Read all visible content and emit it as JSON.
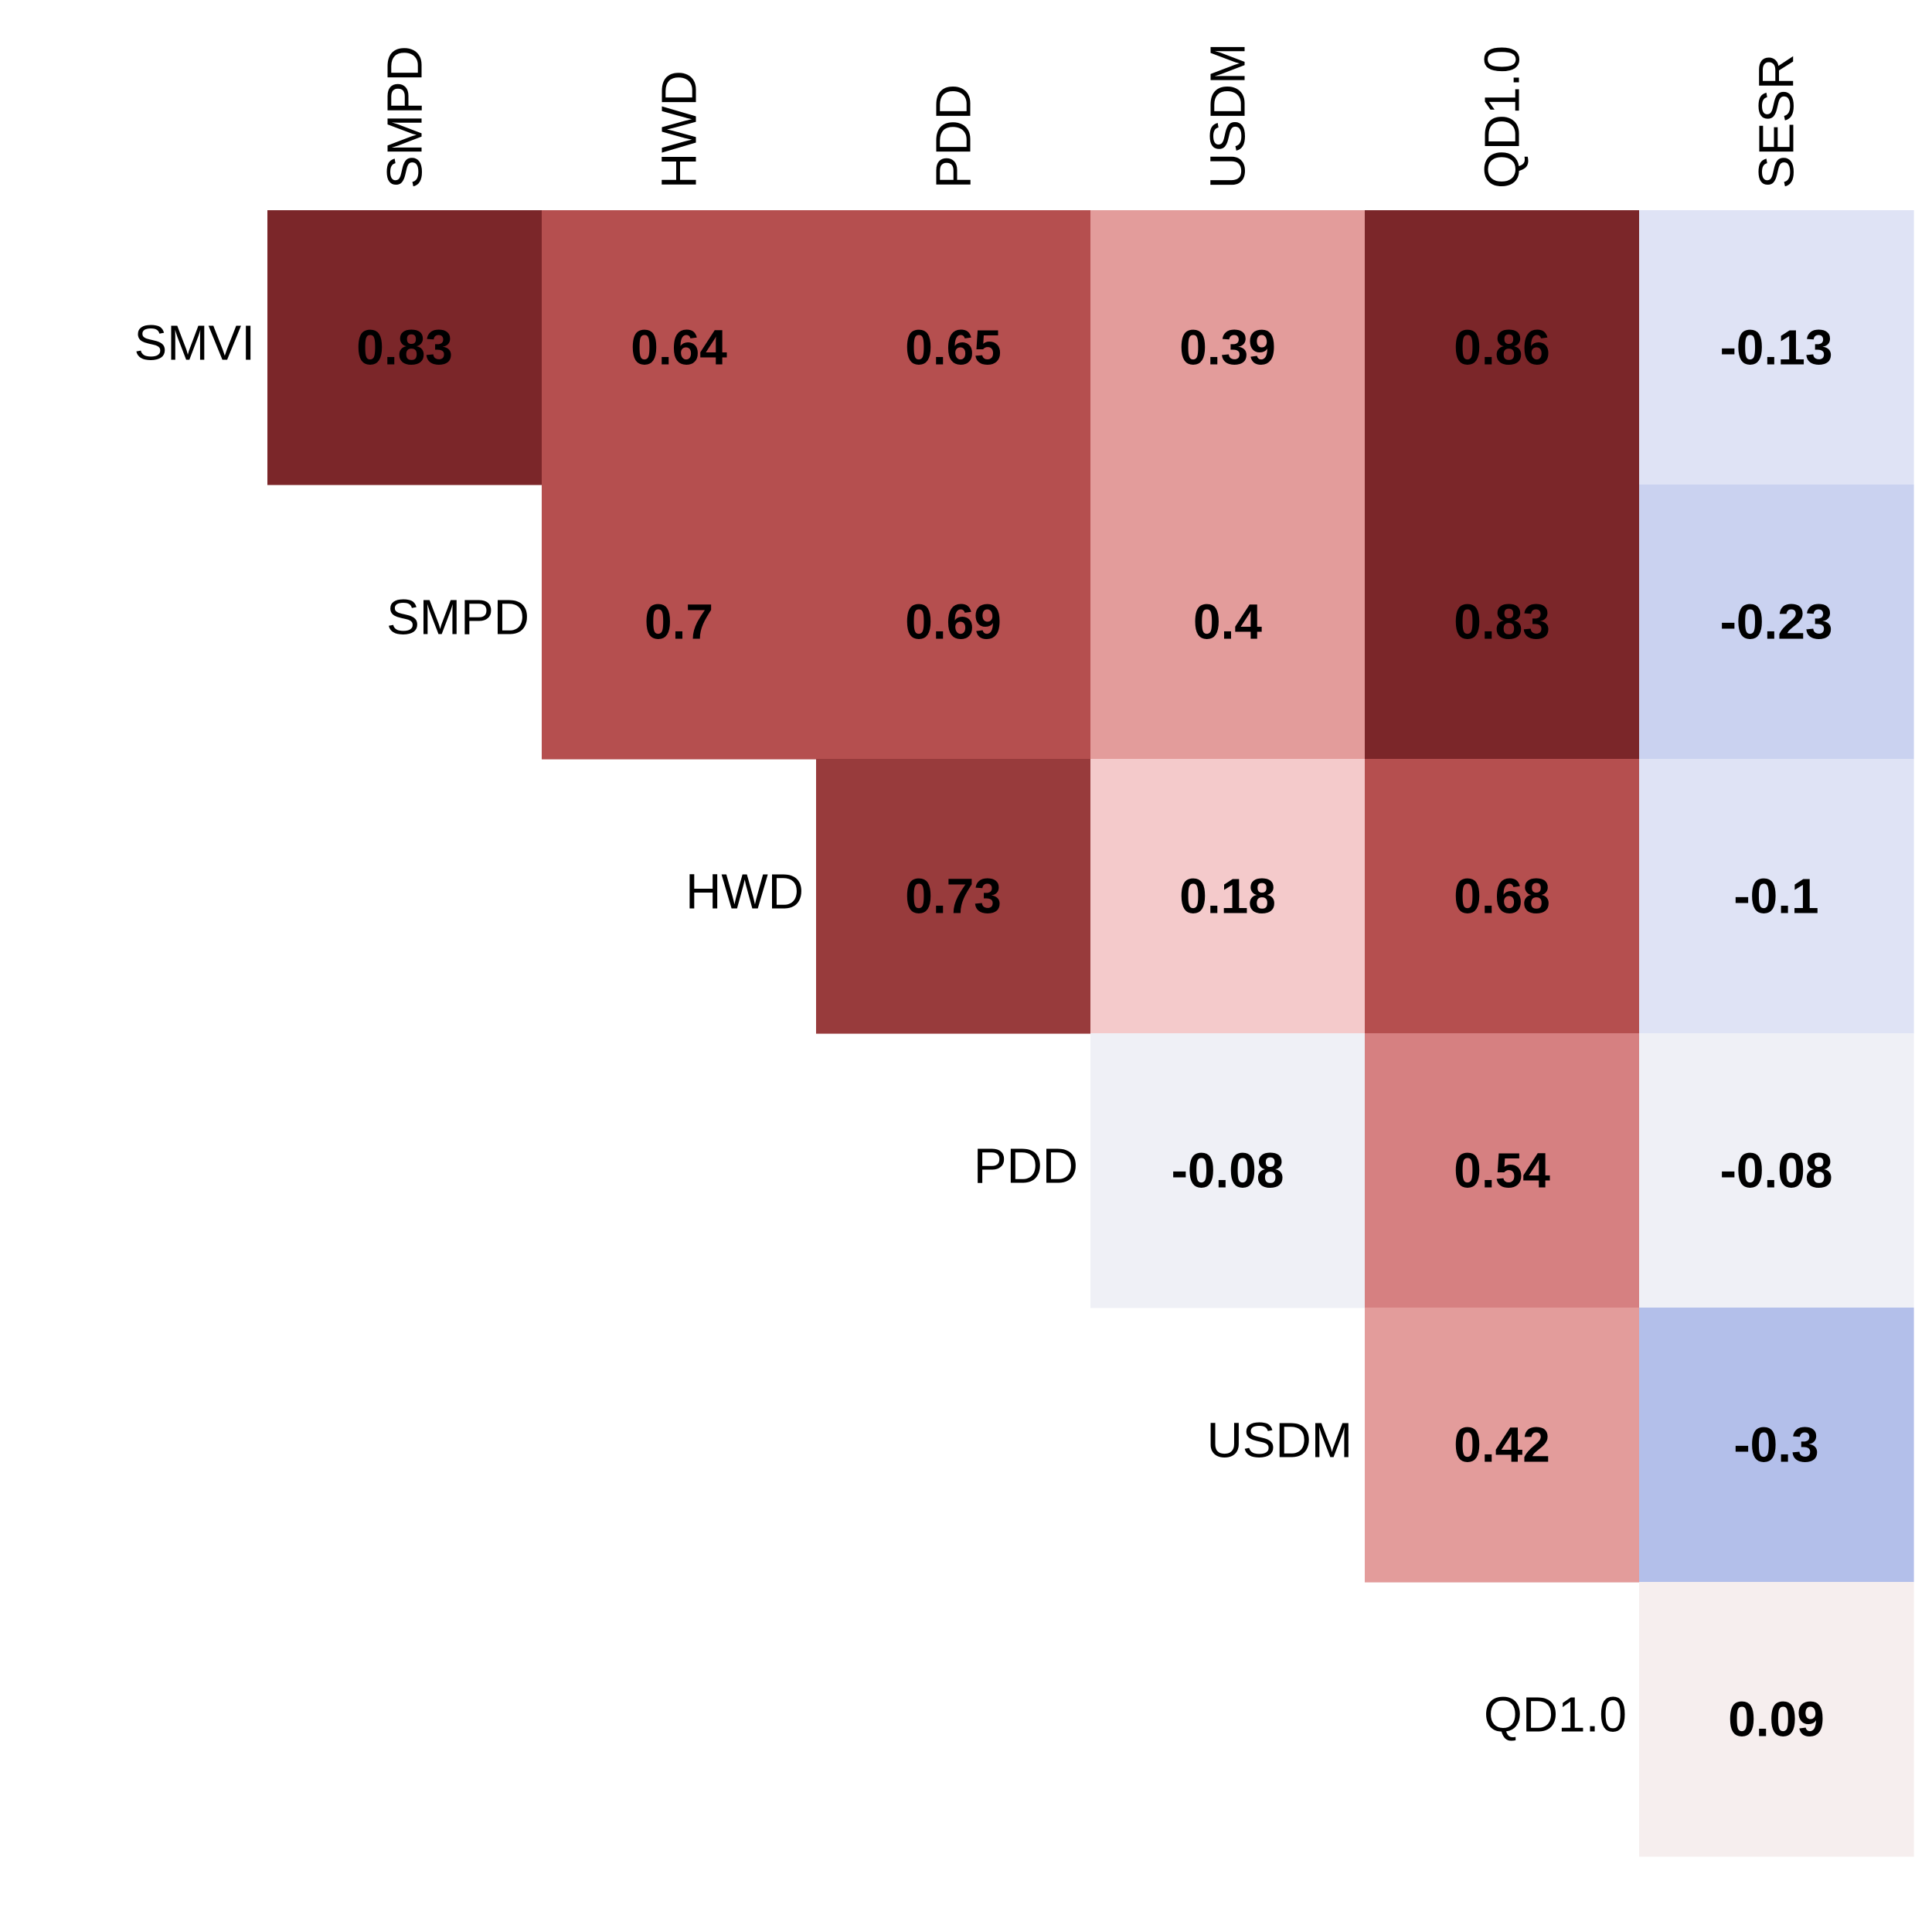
{
  "chart_data": {
    "type": "heatmap",
    "title": "",
    "xlabel": "",
    "ylabel": "",
    "columns": [
      "SMPD",
      "HWD",
      "PDD",
      "USDM",
      "QD1.0",
      "SESR"
    ],
    "rows": [
      "SMVI",
      "SMPD",
      "HWD",
      "PDD",
      "USDM",
      "QD1.0"
    ],
    "layout": "upper-triangular",
    "value_range": [
      -1,
      1
    ],
    "colors": {
      "negative": "#3b5fc0",
      "neutral": "#f7f7f7",
      "positive": "#7b2629"
    },
    "cells": [
      [
        {
          "value": 0.83,
          "label": "0.83",
          "color": "#7b2629"
        },
        {
          "value": 0.64,
          "label": "0.64",
          "color": "#b54f4f"
        },
        {
          "value": 0.65,
          "label": "0.65",
          "color": "#b54f4f"
        },
        {
          "value": 0.39,
          "label": "0.39",
          "color": "#e39c9b"
        },
        {
          "value": 0.86,
          "label": "0.86",
          "color": "#7b2629"
        },
        {
          "value": -0.13,
          "label": "-0.13",
          "color": "#dfe3f5"
        }
      ],
      [
        null,
        {
          "value": 0.7,
          "label": "0.7",
          "color": "#b54f4f"
        },
        {
          "value": 0.69,
          "label": "0.69",
          "color": "#b54f4f"
        },
        {
          "value": 0.4,
          "label": "0.4",
          "color": "#e39c9b"
        },
        {
          "value": 0.83,
          "label": "0.83",
          "color": "#7b2629"
        },
        {
          "value": -0.23,
          "label": "-0.23",
          "color": "#cad2f0"
        }
      ],
      [
        null,
        null,
        {
          "value": 0.73,
          "label": "0.73",
          "color": "#983b3c"
        },
        {
          "value": 0.18,
          "label": "0.18",
          "color": "#f4cacb"
        },
        {
          "value": 0.68,
          "label": "0.68",
          "color": "#b54f4f"
        },
        {
          "value": -0.1,
          "label": "-0.1",
          "color": "#dfe3f5"
        }
      ],
      [
        null,
        null,
        null,
        {
          "value": -0.08,
          "label": "-0.08",
          "color": "#eff0f6"
        },
        {
          "value": 0.54,
          "label": "0.54",
          "color": "#d68081"
        },
        {
          "value": -0.08,
          "label": "-0.08",
          "color": "#eff0f6"
        }
      ],
      [
        null,
        null,
        null,
        null,
        {
          "value": 0.42,
          "label": "0.42",
          "color": "#e39c9b"
        },
        {
          "value": -0.3,
          "label": "-0.3",
          "color": "#b3bfea"
        }
      ],
      [
        null,
        null,
        null,
        null,
        null,
        {
          "value": 0.09,
          "label": "0.09",
          "color": "#f6eeee"
        }
      ]
    ]
  }
}
